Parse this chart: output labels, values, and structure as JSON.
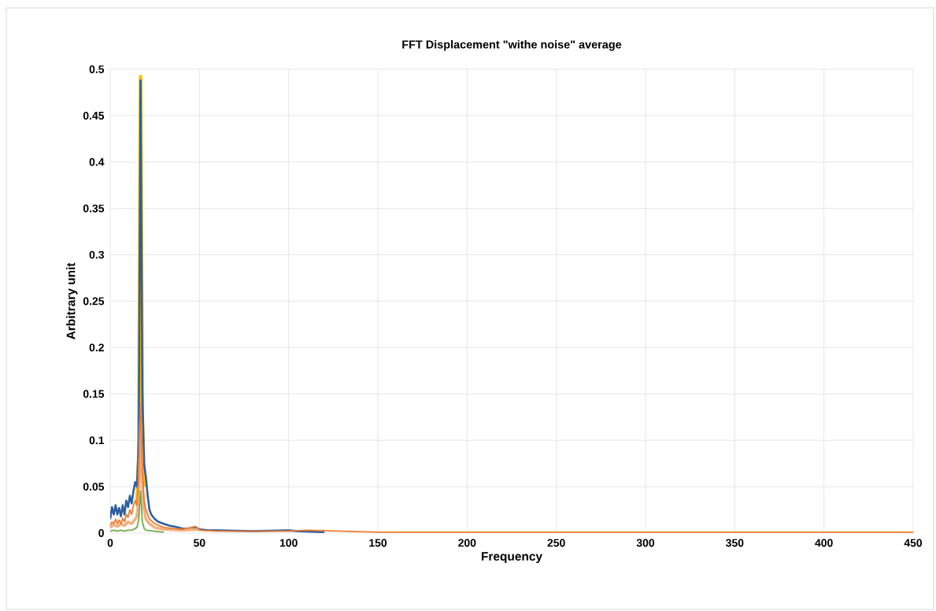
{
  "chart_data": {
    "type": "line",
    "title": "FFT Displacement \"withe noise\" average",
    "xlabel": "Frequency",
    "ylabel": "Arbitrary unit",
    "xlim": [
      0,
      450
    ],
    "ylim": [
      0,
      0.5
    ],
    "xticks": [
      0,
      50,
      100,
      150,
      200,
      250,
      300,
      350,
      400,
      450
    ],
    "yticks": [
      0,
      0.05,
      0.1,
      0.15,
      0.2,
      0.25,
      0.3,
      0.35,
      0.4,
      0.45,
      0.5
    ],
    "grid": true,
    "marker": "none",
    "line_style": "solid",
    "series": [
      {
        "color": "#ffc000",
        "x": [
          15,
          16,
          17,
          18,
          19
        ],
        "values": [
          0.03,
          0.08,
          0.492,
          0.12,
          0.05
        ]
      },
      {
        "color": "#2f5fa0",
        "x": [
          0,
          1,
          2,
          3,
          4,
          5,
          6,
          7,
          8,
          9,
          10,
          11,
          12,
          13,
          14,
          15,
          16,
          17,
          18,
          19,
          20,
          21,
          22,
          23,
          25,
          27,
          30,
          33,
          36,
          40,
          45,
          48,
          50,
          55,
          60,
          80,
          100,
          105,
          120
        ],
        "values": [
          0.015,
          0.028,
          0.02,
          0.03,
          0.02,
          0.027,
          0.018,
          0.03,
          0.02,
          0.035,
          0.028,
          0.04,
          0.032,
          0.045,
          0.055,
          0.05,
          0.1,
          0.488,
          0.15,
          0.075,
          0.06,
          0.04,
          0.025,
          0.02,
          0.015,
          0.012,
          0.01,
          0.008,
          0.007,
          0.005,
          0.004,
          0.006,
          0.004,
          0.003,
          0.003,
          0.002,
          0.003,
          0.002,
          0.001
        ]
      },
      {
        "color": "#f4b183",
        "x": [
          0,
          2,
          4,
          6,
          8,
          10,
          12,
          14,
          15,
          16,
          17,
          18,
          19,
          20,
          22,
          25,
          30,
          40,
          50
        ],
        "values": [
          0.006,
          0.009,
          0.007,
          0.01,
          0.008,
          0.012,
          0.01,
          0.015,
          0.018,
          0.04,
          0.12,
          0.05,
          0.025,
          0.015,
          0.01,
          0.006,
          0.004,
          0.003,
          0.004
        ]
      },
      {
        "color": "#ed7d31",
        "x": [
          0,
          1,
          2,
          3,
          4,
          5,
          6,
          7,
          8,
          9,
          10,
          11,
          12,
          13,
          14,
          15,
          16,
          17,
          18,
          19,
          20,
          22,
          25,
          30,
          35,
          40,
          48,
          50,
          60,
          100,
          110,
          150,
          450
        ],
        "values": [
          0.008,
          0.012,
          0.01,
          0.015,
          0.01,
          0.014,
          0.01,
          0.016,
          0.012,
          0.02,
          0.017,
          0.025,
          0.02,
          0.03,
          0.035,
          0.03,
          0.06,
          0.14,
          0.07,
          0.035,
          0.025,
          0.015,
          0.01,
          0.006,
          0.005,
          0.004,
          0.007,
          0.003,
          0.002,
          0.002,
          0.003,
          0.001,
          0.001
        ]
      },
      {
        "color": "#70ad47",
        "x": [
          0,
          2,
          4,
          6,
          8,
          10,
          12,
          14,
          15,
          16,
          17,
          18,
          19,
          20,
          25,
          30
        ],
        "values": [
          0.002,
          0.003,
          0.002,
          0.003,
          0.002,
          0.003,
          0.003,
          0.005,
          0.006,
          0.015,
          0.045,
          0.012,
          0.005,
          0.003,
          0.002,
          0.001
        ]
      }
    ]
  }
}
